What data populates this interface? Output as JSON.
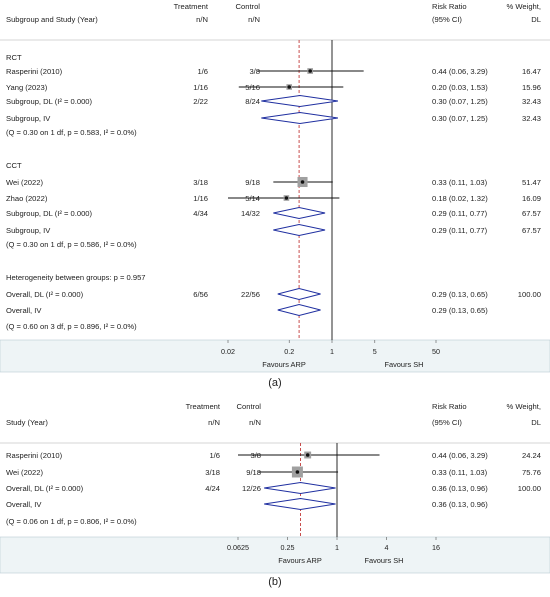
{
  "chart_data": [
    {
      "type": "forest",
      "panel_label": "(a)",
      "scale": "log",
      "null_value": 1,
      "pooled_reference": 0.29,
      "header": {
        "col1": "Subgroup and Study (Year)",
        "treatment": "Treatment",
        "treatment_sub": "n/N",
        "control": "Control",
        "control_sub": "n/N",
        "effect": "Risk Ratio",
        "effect_sub": "(95% CI)",
        "weight": "% Weight,",
        "weight_sub": "DL"
      },
      "rows": [
        {
          "kind": "group",
          "label": "RCT"
        },
        {
          "kind": "study",
          "label": "Rasperini (2010)",
          "treatment": "1/6",
          "control": "3/8",
          "rr": 0.44,
          "lo": 0.06,
          "hi": 3.29,
          "ci_text": "0.44 (0.06, 3.29)",
          "weight": "16.47"
        },
        {
          "kind": "study",
          "label": "Yang (2023)",
          "treatment": "1/16",
          "control": "5/16",
          "rr": 0.2,
          "lo": 0.03,
          "hi": 1.53,
          "ci_text": "0.20 (0.03, 1.53)",
          "weight": "15.96"
        },
        {
          "kind": "pooled",
          "label": "Subgroup, DL (I² = 0.000)",
          "treatment": "2/22",
          "control": "8/24",
          "rr": 0.3,
          "lo": 0.07,
          "hi": 1.25,
          "ci_text": "0.30 (0.07, 1.25)",
          "weight": "32.43"
        },
        {
          "kind": "pooled",
          "label": "Subgroup, IV",
          "treatment": "",
          "control": "",
          "rr": 0.3,
          "lo": 0.07,
          "hi": 1.25,
          "ci_text": "0.30 (0.07, 1.25)",
          "weight": "32.43"
        },
        {
          "kind": "note",
          "label": "(Q = 0.30 on 1 df, p = 0.583, I² = 0.0%)"
        },
        {
          "kind": "group",
          "label": "CCT"
        },
        {
          "kind": "study",
          "label": "Wei (2022)",
          "treatment": "3/18",
          "control": "9/18",
          "rr": 0.33,
          "lo": 0.11,
          "hi": 1.03,
          "ci_text": "0.33 (0.11, 1.03)",
          "weight": "51.47"
        },
        {
          "kind": "study",
          "label": "Zhao (2022)",
          "treatment": "1/16",
          "control": "5/14",
          "rr": 0.18,
          "lo": 0.02,
          "hi": 1.32,
          "ci_text": "0.18 (0.02, 1.32)",
          "weight": "16.09"
        },
        {
          "kind": "pooled",
          "label": "Subgroup, DL (I² = 0.000)",
          "treatment": "4/34",
          "control": "14/32",
          "rr": 0.29,
          "lo": 0.11,
          "hi": 0.77,
          "ci_text": "0.29 (0.11, 0.77)",
          "weight": "67.57"
        },
        {
          "kind": "pooled",
          "label": "Subgroup, IV",
          "treatment": "",
          "control": "",
          "rr": 0.29,
          "lo": 0.11,
          "hi": 0.77,
          "ci_text": "0.29 (0.11, 0.77)",
          "weight": "67.57"
        },
        {
          "kind": "note",
          "label": "(Q = 0.30 on 1 df, p = 0.586, I² = 0.0%)"
        },
        {
          "kind": "note",
          "label": "Heterogeneity between groups: p = 0.957"
        },
        {
          "kind": "pooled",
          "label": "Overall, DL (I² = 0.000)",
          "treatment": "6/56",
          "control": "22/56",
          "rr": 0.29,
          "lo": 0.13,
          "hi": 0.65,
          "ci_text": "0.29 (0.13, 0.65)",
          "weight": "100.00"
        },
        {
          "kind": "pooled",
          "label": "Overall, IV",
          "treatment": "",
          "control": "",
          "rr": 0.29,
          "lo": 0.13,
          "hi": 0.65,
          "ci_text": "0.29 (0.13, 0.65)",
          "weight": ""
        },
        {
          "kind": "note",
          "label": "(Q = 0.60 on 3 df, p = 0.896, I² = 0.0%)"
        }
      ],
      "x_ticks": [
        0.02,
        0.2,
        1,
        5,
        50
      ],
      "x_tick_labels": [
        "0.02",
        "0.2",
        "1",
        "5",
        "50"
      ],
      "favours_left": "Favours ARP",
      "favours_right": "Favours SH"
    },
    {
      "type": "forest",
      "panel_label": "(b)",
      "scale": "log",
      "null_value": 1,
      "pooled_reference": 0.36,
      "header": {
        "col1": "Study (Year)",
        "treatment": "Treatment",
        "treatment_sub": "n/N",
        "control": "Control",
        "control_sub": "n/N",
        "effect": "Risk Ratio",
        "effect_sub": "(95% CI)",
        "weight": "% Weight,",
        "weight_sub": "DL"
      },
      "rows": [
        {
          "kind": "study",
          "label": "Rasperini (2010)",
          "treatment": "1/6",
          "control": "3/8",
          "rr": 0.44,
          "lo": 0.06,
          "hi": 3.29,
          "ci_text": "0.44 (0.06, 3.29)",
          "weight": "24.24"
        },
        {
          "kind": "study",
          "label": "Wei (2022)",
          "treatment": "3/18",
          "control": "9/18",
          "rr": 0.33,
          "lo": 0.11,
          "hi": 1.03,
          "ci_text": "0.33 (0.11, 1.03)",
          "weight": "75.76"
        },
        {
          "kind": "pooled",
          "label": "Overall, DL (I² = 0.000)",
          "treatment": "4/24",
          "control": "12/26",
          "rr": 0.36,
          "lo": 0.13,
          "hi": 0.96,
          "ci_text": "0.36 (0.13, 0.96)",
          "weight": "100.00"
        },
        {
          "kind": "pooled",
          "label": "Overall, IV",
          "treatment": "",
          "control": "",
          "rr": 0.36,
          "lo": 0.13,
          "hi": 0.96,
          "ci_text": "0.36 (0.13, 0.96)",
          "weight": ""
        },
        {
          "kind": "note",
          "label": "(Q = 0.06 on 1 df, p = 0.806, I² = 0.0%)"
        }
      ],
      "x_ticks": [
        0.0625,
        0.25,
        1,
        4,
        16
      ],
      "x_tick_labels": [
        "0.0625",
        "0.25",
        "1",
        "4",
        "16"
      ],
      "favours_left": "Favours ARP",
      "favours_right": "Favours SH"
    }
  ]
}
